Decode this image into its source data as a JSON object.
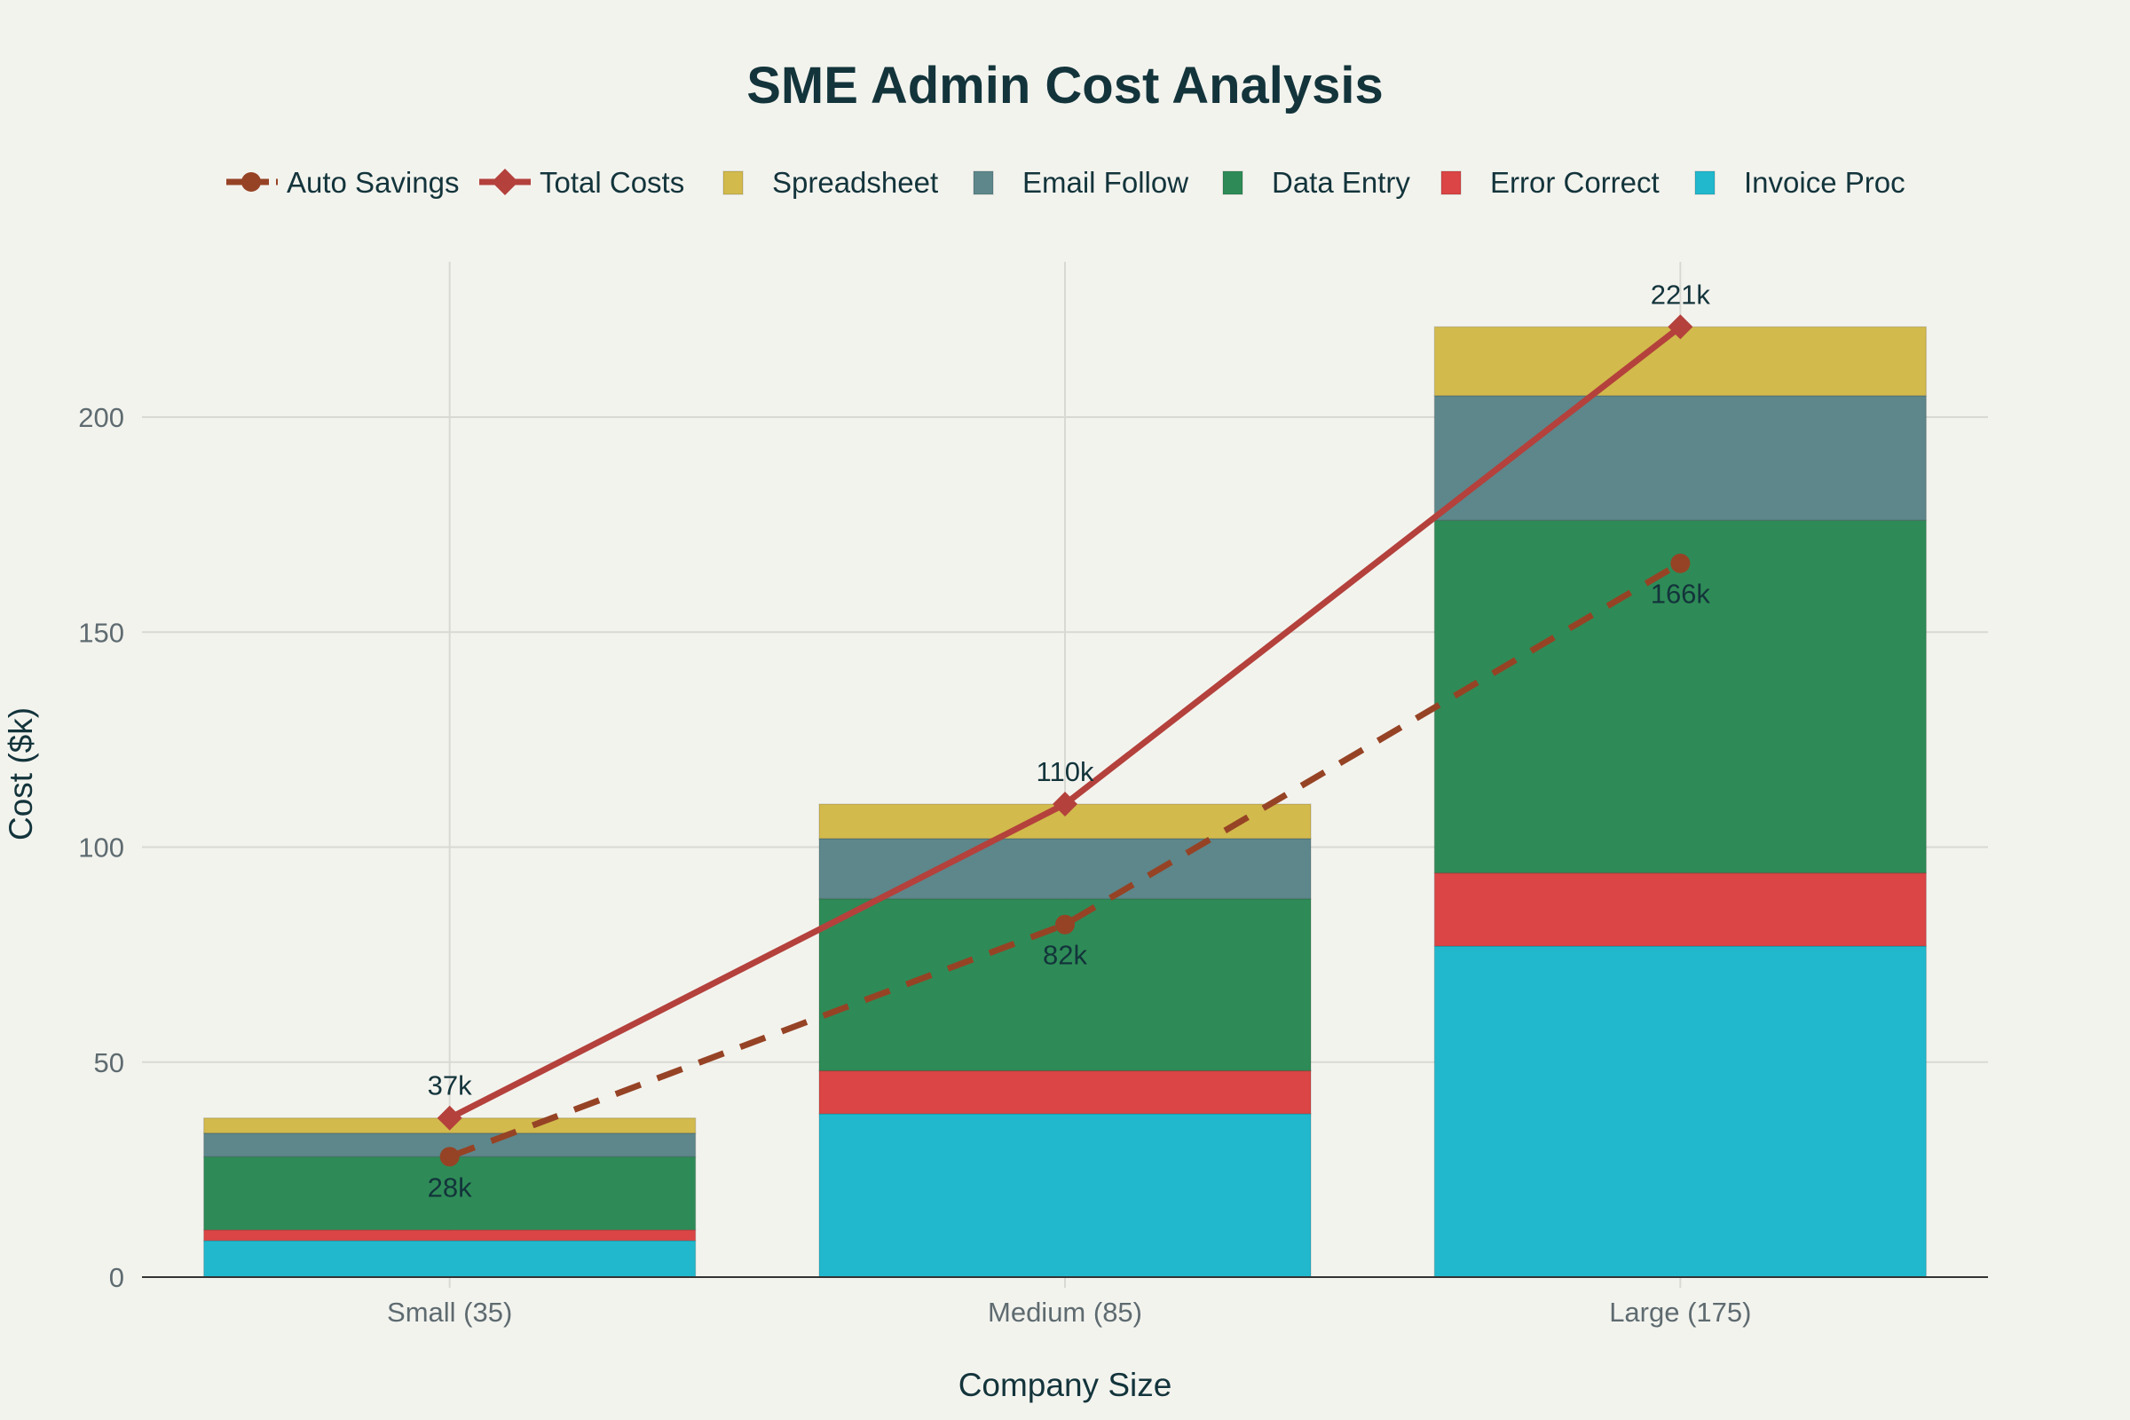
{
  "chart_data": {
    "type": "bar",
    "subtype": "stacked-bar-with-lines",
    "title": "SME Admin Cost Analysis",
    "xlabel": "Company Size",
    "ylabel": "Cost ($k)",
    "ylim": [
      0,
      236
    ],
    "yticks": [
      0,
      50,
      100,
      150,
      200
    ],
    "grid": true,
    "legend_position": "top-center",
    "categories": [
      "Small (35)",
      "Medium (85)",
      "Large (175)"
    ],
    "series": [
      {
        "name": "Invoice Proc",
        "kind": "bar",
        "color": "#21b8cd",
        "values": [
          8.5,
          38,
          77
        ]
      },
      {
        "name": "Error Correct",
        "kind": "bar",
        "color": "#db4545",
        "values": [
          2.5,
          10,
          17
        ]
      },
      {
        "name": "Data Entry",
        "kind": "bar",
        "color": "#2e8b57",
        "values": [
          17,
          40,
          82
        ]
      },
      {
        "name": "Email Follow",
        "kind": "bar",
        "color": "#5d878b",
        "values": [
          5.5,
          14,
          29
        ]
      },
      {
        "name": "Spreadsheet",
        "kind": "bar",
        "color": "#d2ba4c",
        "values": [
          3.5,
          8,
          16
        ]
      },
      {
        "name": "Total Costs",
        "kind": "line",
        "marker": "diamond",
        "dash": "solid",
        "color": "#b4413c",
        "values": [
          37,
          110,
          221
        ],
        "labels": [
          "37k",
          "110k",
          "221k"
        ],
        "label_position": "top"
      },
      {
        "name": "Auto Savings",
        "kind": "line",
        "marker": "circle",
        "dash": "dashed",
        "color": "#964325",
        "values": [
          28,
          82,
          166
        ],
        "labels": [
          "28k",
          "82k",
          "166k"
        ],
        "label_position": "bottom"
      }
    ],
    "legend_order": [
      "Auto Savings",
      "Total Costs",
      "Spreadsheet",
      "Email Follow",
      "Data Entry",
      "Error Correct",
      "Invoice Proc"
    ]
  }
}
